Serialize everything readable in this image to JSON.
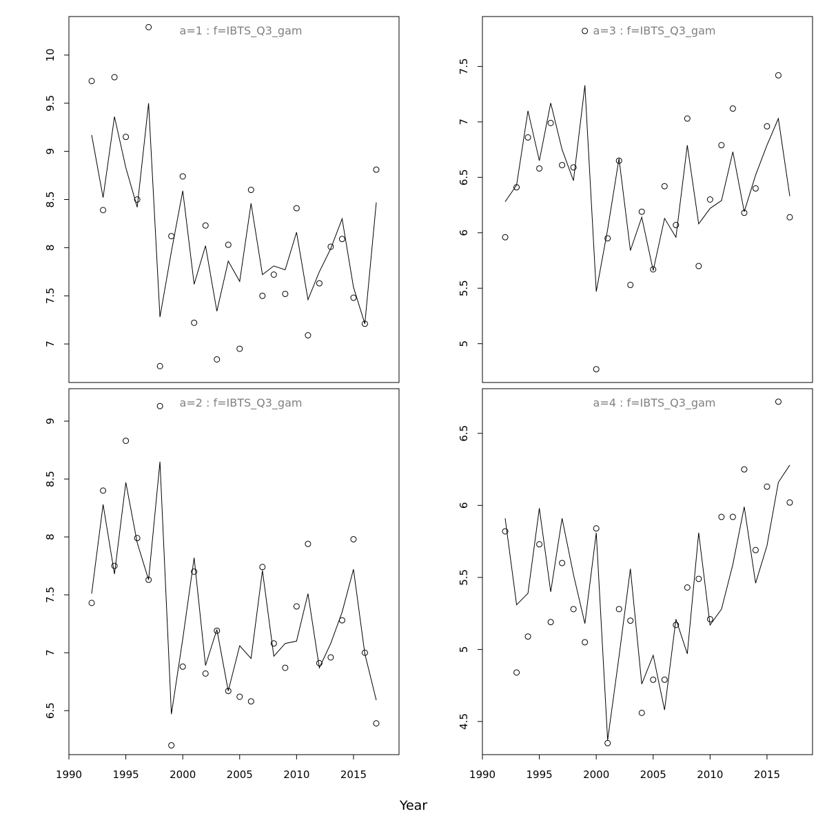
{
  "figure": {
    "xlabel": "Year"
  },
  "chart_data": [
    {
      "type": "scatter",
      "title": "a=1  :  f=IBTS_Q3_gam",
      "xlim": [
        1990,
        2019
      ],
      "ylim": [
        6.6,
        10.4
      ],
      "yticks": [
        7.0,
        7.5,
        8.0,
        8.5,
        9.0,
        9.5,
        10.0
      ],
      "xticks": [],
      "observed": {
        "x": [
          1992,
          1993,
          1994,
          1995,
          1996,
          1997,
          1998,
          1999,
          2000,
          2001,
          2002,
          2003,
          2004,
          2005,
          2006,
          2007,
          2008,
          2009,
          2010,
          2011,
          2012,
          2013,
          2014,
          2015,
          2016,
          2017
        ],
        "y": [
          9.73,
          8.39,
          9.77,
          9.15,
          8.5,
          10.29,
          6.77,
          8.12,
          8.74,
          7.22,
          8.23,
          6.84,
          8.03,
          6.95,
          8.6,
          7.5,
          7.72,
          7.52,
          8.41,
          7.09,
          7.63,
          8.01,
          8.09,
          7.48,
          7.21,
          8.81
        ]
      },
      "fitted": {
        "x": [
          1992,
          1993,
          1994,
          1995,
          1996,
          1997,
          1998,
          1999,
          2000,
          2001,
          2002,
          2003,
          2004,
          2005,
          2006,
          2007,
          2008,
          2009,
          2010,
          2011,
          2012,
          2013,
          2014,
          2015,
          2016,
          2017
        ],
        "y": [
          9.17,
          8.52,
          9.36,
          8.83,
          8.42,
          9.5,
          7.28,
          7.96,
          8.59,
          7.62,
          8.02,
          7.34,
          7.86,
          7.65,
          8.46,
          7.72,
          7.81,
          7.77,
          8.16,
          7.46,
          7.75,
          7.99,
          8.3,
          7.59,
          7.21,
          8.47
        ]
      }
    },
    {
      "type": "scatter",
      "title": "a=3  :  f=IBTS_Q3_gam",
      "xlim": [
        1990,
        2019
      ],
      "ylim": [
        4.65,
        7.95
      ],
      "yticks": [
        5.0,
        5.5,
        6.0,
        6.5,
        7.0,
        7.5
      ],
      "xticks": [],
      "observed": {
        "x": [
          1992,
          1993,
          1994,
          1995,
          1996,
          1997,
          1998,
          1999,
          2000,
          2001,
          2002,
          2003,
          2004,
          2005,
          2006,
          2007,
          2008,
          2009,
          2010,
          2011,
          2012,
          2013,
          2014,
          2015,
          2016,
          2017
        ],
        "y": [
          5.96,
          6.41,
          6.86,
          6.58,
          6.99,
          6.61,
          6.59,
          7.82,
          4.77,
          5.95,
          6.65,
          5.53,
          6.19,
          5.67,
          6.42,
          6.07,
          7.03,
          5.7,
          6.3,
          6.79,
          7.12,
          6.18,
          6.4,
          6.96,
          7.42,
          6.14
        ]
      },
      "fitted": {
        "x": [
          1992,
          1993,
          1994,
          1995,
          1996,
          1997,
          1998,
          1999,
          2000,
          2001,
          2002,
          2003,
          2004,
          2005,
          2006,
          2007,
          2008,
          2009,
          2010,
          2011,
          2012,
          2013,
          2014,
          2015,
          2016,
          2017
        ],
        "y": [
          6.28,
          6.43,
          7.1,
          6.65,
          7.17,
          6.75,
          6.47,
          7.33,
          5.47,
          6.03,
          6.67,
          5.84,
          6.14,
          5.66,
          6.13,
          5.96,
          6.79,
          6.08,
          6.22,
          6.29,
          6.73,
          6.19,
          6.52,
          6.79,
          7.03,
          6.33
        ]
      }
    },
    {
      "type": "scatter",
      "title": "a=2  :  f=IBTS_Q3_gam",
      "xlim": [
        1990,
        2019
      ],
      "ylim": [
        6.12,
        9.28
      ],
      "yticks": [
        6.5,
        7.0,
        7.5,
        8.0,
        8.5,
        9.0
      ],
      "xticks": [
        1990,
        1995,
        2000,
        2005,
        2010,
        2015
      ],
      "observed": {
        "x": [
          1992,
          1993,
          1994,
          1995,
          1996,
          1997,
          1998,
          1999,
          2000,
          2001,
          2002,
          2003,
          2004,
          2005,
          2006,
          2007,
          2008,
          2009,
          2010,
          2011,
          2012,
          2013,
          2014,
          2015,
          2016,
          2017
        ],
        "y": [
          7.43,
          8.4,
          7.75,
          8.83,
          7.99,
          7.63,
          9.13,
          6.2,
          6.88,
          7.7,
          6.82,
          7.19,
          6.67,
          6.62,
          6.58,
          7.74,
          7.08,
          6.87,
          7.4,
          7.94,
          6.91,
          6.96,
          7.28,
          7.98,
          7.0,
          6.39
        ]
      },
      "fitted": {
        "x": [
          1992,
          1993,
          1994,
          1995,
          1996,
          1997,
          1998,
          1999,
          2000,
          2001,
          2002,
          2003,
          2004,
          2005,
          2006,
          2007,
          2008,
          2009,
          2010,
          2011,
          2012,
          2013,
          2014,
          2015,
          2016,
          2017
        ],
        "y": [
          7.51,
          8.28,
          7.68,
          8.47,
          7.95,
          7.63,
          8.65,
          6.47,
          7.12,
          7.82,
          6.89,
          7.2,
          6.67,
          7.06,
          6.95,
          7.71,
          6.97,
          7.08,
          7.1,
          7.51,
          6.87,
          7.08,
          7.35,
          7.72,
          6.99,
          6.59
        ]
      }
    },
    {
      "type": "scatter",
      "title": "a=4  :  f=IBTS_Q3_gam",
      "xlim": [
        1990,
        2019
      ],
      "ylim": [
        4.27,
        6.81
      ],
      "yticks": [
        4.5,
        5.0,
        5.5,
        6.0,
        6.5
      ],
      "xticks": [
        1990,
        1995,
        2000,
        2005,
        2010,
        2015
      ],
      "observed": {
        "x": [
          1992,
          1993,
          1994,
          1995,
          1996,
          1997,
          1998,
          1999,
          2000,
          2001,
          2002,
          2003,
          2004,
          2005,
          2006,
          2007,
          2008,
          2009,
          2010,
          2011,
          2012,
          2013,
          2014,
          2015,
          2016,
          2017
        ],
        "y": [
          5.82,
          4.84,
          5.09,
          5.73,
          5.19,
          5.6,
          5.28,
          5.05,
          5.84,
          4.35,
          5.28,
          5.2,
          4.56,
          4.79,
          4.79,
          5.17,
          5.43,
          5.49,
          5.21,
          5.92,
          5.92,
          6.25,
          5.69,
          6.13,
          6.72,
          6.02
        ]
      },
      "fitted": {
        "x": [
          1992,
          1993,
          1994,
          1995,
          1996,
          1997,
          1998,
          1999,
          2000,
          2001,
          2002,
          2003,
          2004,
          2005,
          2006,
          2007,
          2008,
          2009,
          2010,
          2011,
          2012,
          2013,
          2014,
          2015,
          2016,
          2017
        ],
        "y": [
          5.91,
          5.31,
          5.39,
          5.98,
          5.4,
          5.91,
          5.52,
          5.18,
          5.81,
          4.37,
          4.95,
          5.56,
          4.76,
          4.96,
          4.58,
          5.21,
          4.97,
          5.81,
          5.17,
          5.28,
          5.59,
          5.99,
          5.46,
          5.72,
          6.16,
          6.28
        ]
      }
    }
  ]
}
